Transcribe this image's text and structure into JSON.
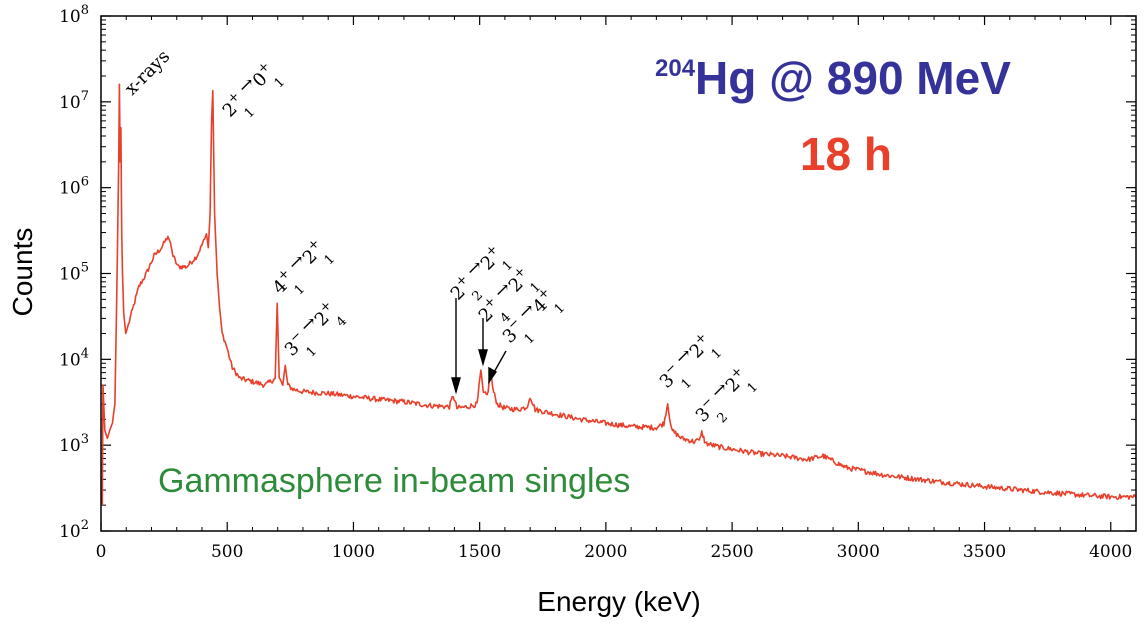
{
  "chart_data": {
    "type": "line",
    "title_parts": {
      "superscript": "204",
      "main": "Hg @ 890 MeV"
    },
    "subtitle": "18 h",
    "note": "Gammasphere in-beam singles",
    "xlabel": "Energy (keV)",
    "ylabel": "Counts",
    "xlim": [
      0,
      4100
    ],
    "ylim": [
      100,
      100000000
    ],
    "yscale": "log",
    "grid": false,
    "xticks": [
      0,
      500,
      1000,
      1500,
      2000,
      2500,
      3000,
      3500,
      4000
    ],
    "xtick_labels": [
      "0",
      "500",
      "1000",
      "1500",
      "2000",
      "2500",
      "3000",
      "3500",
      "4000"
    ],
    "yticks": [
      100,
      1000,
      10000,
      100000,
      1000000,
      10000000,
      100000000
    ],
    "ytick_labels": [
      {
        "base": "10",
        "exp": "2"
      },
      {
        "base": "10",
        "exp": "3"
      },
      {
        "base": "10",
        "exp": "4"
      },
      {
        "base": "10",
        "exp": "5"
      },
      {
        "base": "10",
        "exp": "6"
      },
      {
        "base": "10",
        "exp": "7"
      },
      {
        "base": "10",
        "exp": "8"
      }
    ],
    "colors": {
      "spectrum": "#e8402a",
      "title": "#35339a",
      "subtitle": "#e8402a",
      "note": "#2e8b3a"
    },
    "series": [
      {
        "x": [
          5,
          8,
          15,
          25,
          35,
          45,
          55,
          62,
          66,
          70,
          73,
          76,
          79,
          82,
          85,
          90,
          98,
          108,
          125,
          150,
          180,
          210,
          240,
          265,
          275,
          285,
          305,
          340,
          380,
          410,
          418,
          425,
          432,
          438,
          443,
          450,
          460,
          470,
          480,
          495,
          520,
          550,
          600,
          650,
          690,
          698,
          706,
          720,
          730,
          740,
          760,
          800,
          900,
          1000,
          1100,
          1200,
          1300,
          1380,
          1395,
          1410,
          1450,
          1490,
          1505,
          1515,
          1530,
          1545,
          1552,
          1570,
          1600,
          1650,
          1690,
          1700,
          1720,
          1800,
          1900,
          2000,
          2100,
          2200,
          2230,
          2245,
          2260,
          2300,
          2350,
          2370,
          2380,
          2395,
          2450,
          2600,
          2700,
          2800,
          2860,
          2880,
          2950,
          3100,
          3300,
          3500,
          3700,
          3900,
          4000,
          4100
        ],
        "y": [
          200,
          5000,
          1500,
          1200,
          1500,
          1800,
          3000,
          50000,
          300000,
          2000000,
          16000000,
          2000000,
          5000000,
          300000,
          100000,
          35000,
          20000,
          25000,
          38000,
          70000,
          100000,
          160000,
          200000,
          270000,
          230000,
          160000,
          120000,
          120000,
          160000,
          250000,
          290000,
          200000,
          500000,
          6000000,
          13500000,
          500000,
          100000,
          40000,
          20000,
          15000,
          8000,
          6000,
          5500,
          5000,
          6000,
          45000,
          6000,
          5000,
          8500,
          5000,
          4500,
          4200,
          4000,
          3700,
          3400,
          3200,
          2900,
          2800,
          3800,
          2700,
          2800,
          3000,
          7500,
          4000,
          3800,
          7200,
          4500,
          3000,
          2700,
          2600,
          2800,
          3700,
          2600,
          2300,
          2000,
          1800,
          1650,
          1600,
          1800,
          3100,
          1500,
          1200,
          1100,
          1150,
          1400,
          1050,
          950,
          800,
          750,
          680,
          750,
          700,
          550,
          450,
          380,
          330,
          290,
          260,
          250,
          250
        ]
      }
    ],
    "annotations": [
      {
        "text": "x-rays"
      },
      {
        "pre": "2",
        "pre_sup": "+",
        "pre_sub": "1",
        "arrow": " →",
        "post": "0",
        "post_sup": "+",
        "post_sub": "1"
      },
      {
        "pre": "4",
        "pre_sup": "+",
        "pre_sub": "1",
        "arrow": " →",
        "post": "2",
        "post_sup": "+",
        "post_sub": "1"
      },
      {
        "pre": "3",
        "pre_sup": "−",
        "pre_sub": "1",
        "arrow": " →",
        "post": "2",
        "post_sup": "+",
        "post_sub": "4"
      },
      {
        "pre": "2",
        "pre_sup": "+",
        "pre_sub": "2",
        "arrow": " →",
        "post": "2",
        "post_sup": "+",
        "post_sub": "1"
      },
      {
        "pre": "2",
        "pre_sup": "+",
        "pre_sub": "4",
        "arrow": " →",
        "post": "2",
        "post_sup": "+",
        "post_sub": "1"
      },
      {
        "pre": "3",
        "pre_sup": "−",
        "pre_sub": "1",
        "arrow": " →",
        "post": "4",
        "post_sup": "+",
        "post_sub": "1"
      },
      {
        "pre": "3",
        "pre_sup": "−",
        "pre_sub": "1",
        "arrow": " →",
        "post": "2",
        "post_sup": "+",
        "post_sub": "1"
      },
      {
        "pre": "3",
        "pre_sup": "−",
        "pre_sub": "2",
        "arrow": " →",
        "post": "2",
        "post_sup": "+",
        "post_sub": "1"
      }
    ]
  }
}
